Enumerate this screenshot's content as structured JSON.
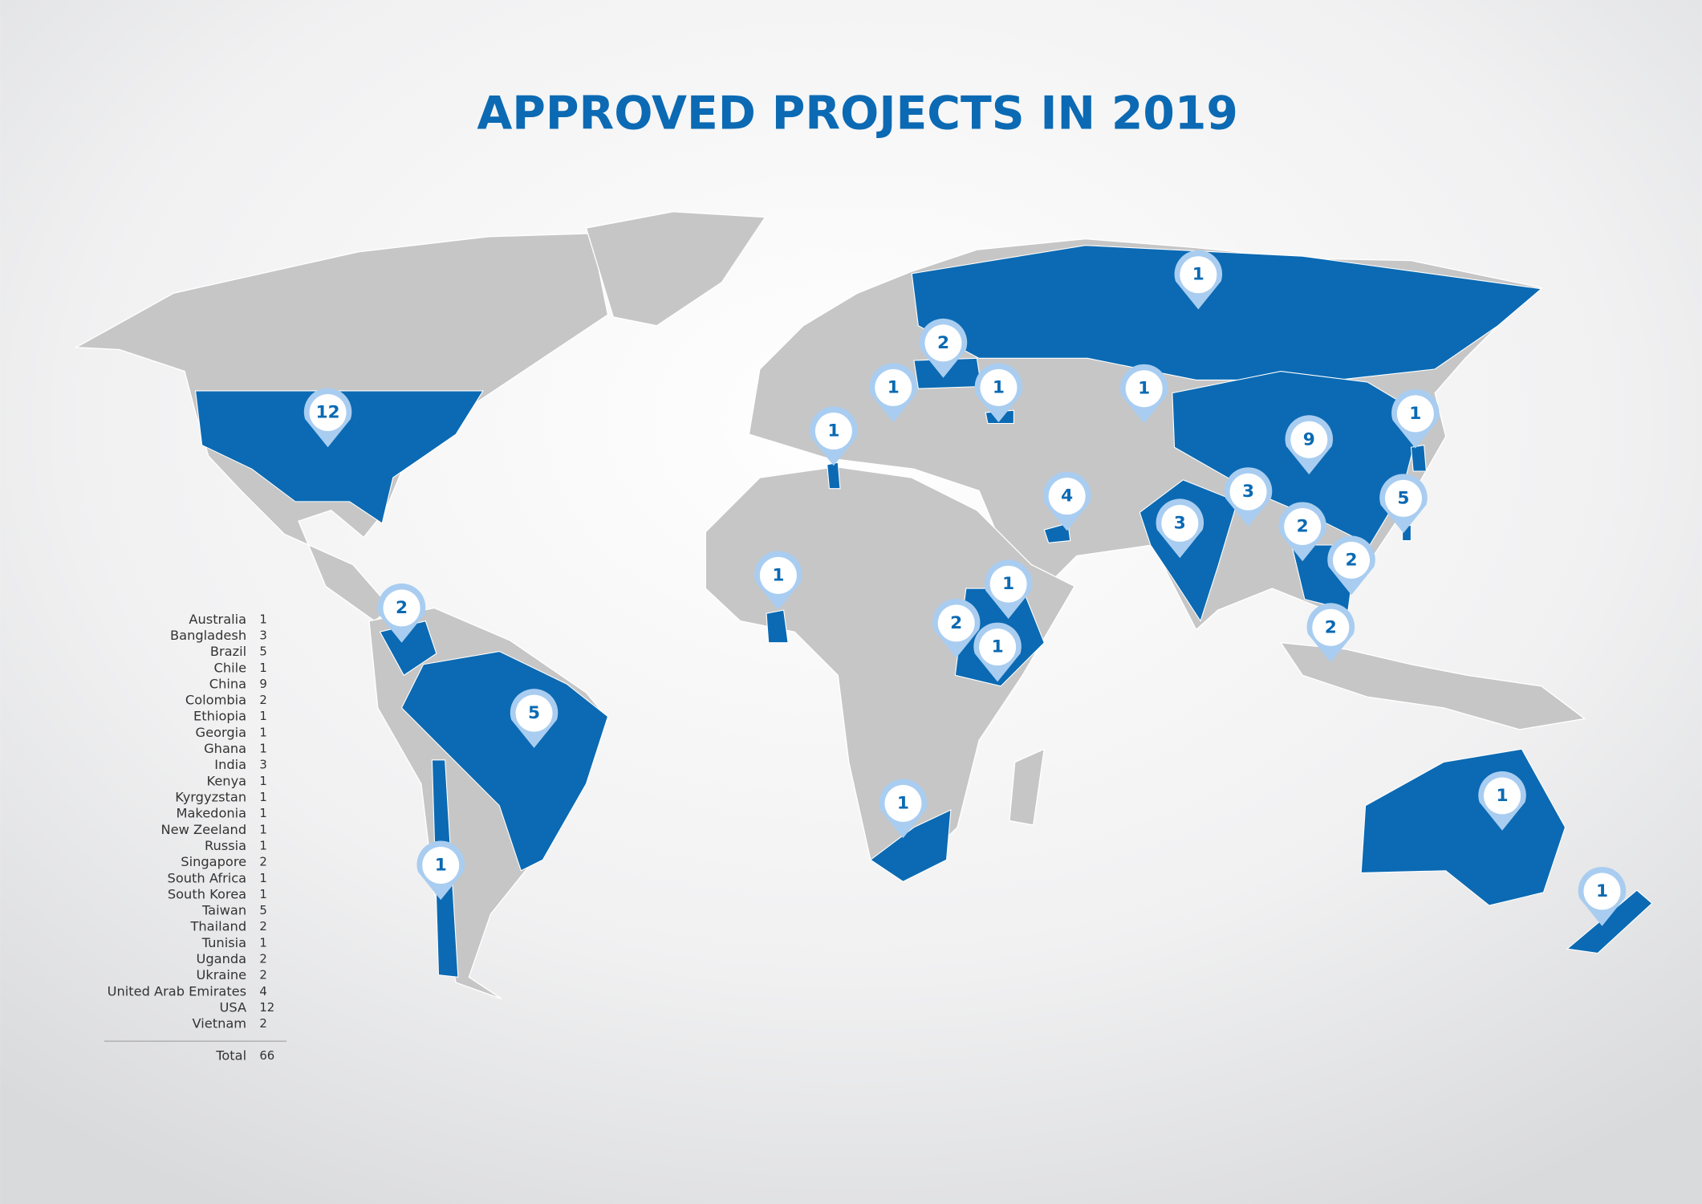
{
  "title": "APPROVED PROJECTS IN 2019",
  "legend": {
    "rows": [
      {
        "country": "Australia",
        "count": 1
      },
      {
        "country": "Bangladesh",
        "count": 3
      },
      {
        "country": "Brazil",
        "count": 5
      },
      {
        "country": "Chile",
        "count": 1
      },
      {
        "country": "China",
        "count": 9
      },
      {
        "country": "Colombia",
        "count": 2
      },
      {
        "country": "Ethiopia",
        "count": 1
      },
      {
        "country": "Georgia",
        "count": 1
      },
      {
        "country": "Ghana",
        "count": 1
      },
      {
        "country": "India",
        "count": 3
      },
      {
        "country": "Kenya",
        "count": 1
      },
      {
        "country": "Kyrgyzstan",
        "count": 1
      },
      {
        "country": "Makedonia",
        "count": 1
      },
      {
        "country": "New Zeeland",
        "count": 1
      },
      {
        "country": "Russia",
        "count": 1
      },
      {
        "country": "Singapore",
        "count": 2
      },
      {
        "country": "South Africa",
        "count": 1
      },
      {
        "country": "South Korea",
        "count": 1
      },
      {
        "country": "Taiwan",
        "count": 5
      },
      {
        "country": "Thailand",
        "count": 2
      },
      {
        "country": "Tunisia",
        "count": 1
      },
      {
        "country": "Uganda",
        "count": 2
      },
      {
        "country": "Ukraine",
        "count": 2
      },
      {
        "country": "United Arab Emirates",
        "count": 4
      },
      {
        "country": "USA",
        "count": 12
      },
      {
        "country": "Vietnam",
        "count": 2
      }
    ],
    "total_label": "Total",
    "total": 66
  }
}
